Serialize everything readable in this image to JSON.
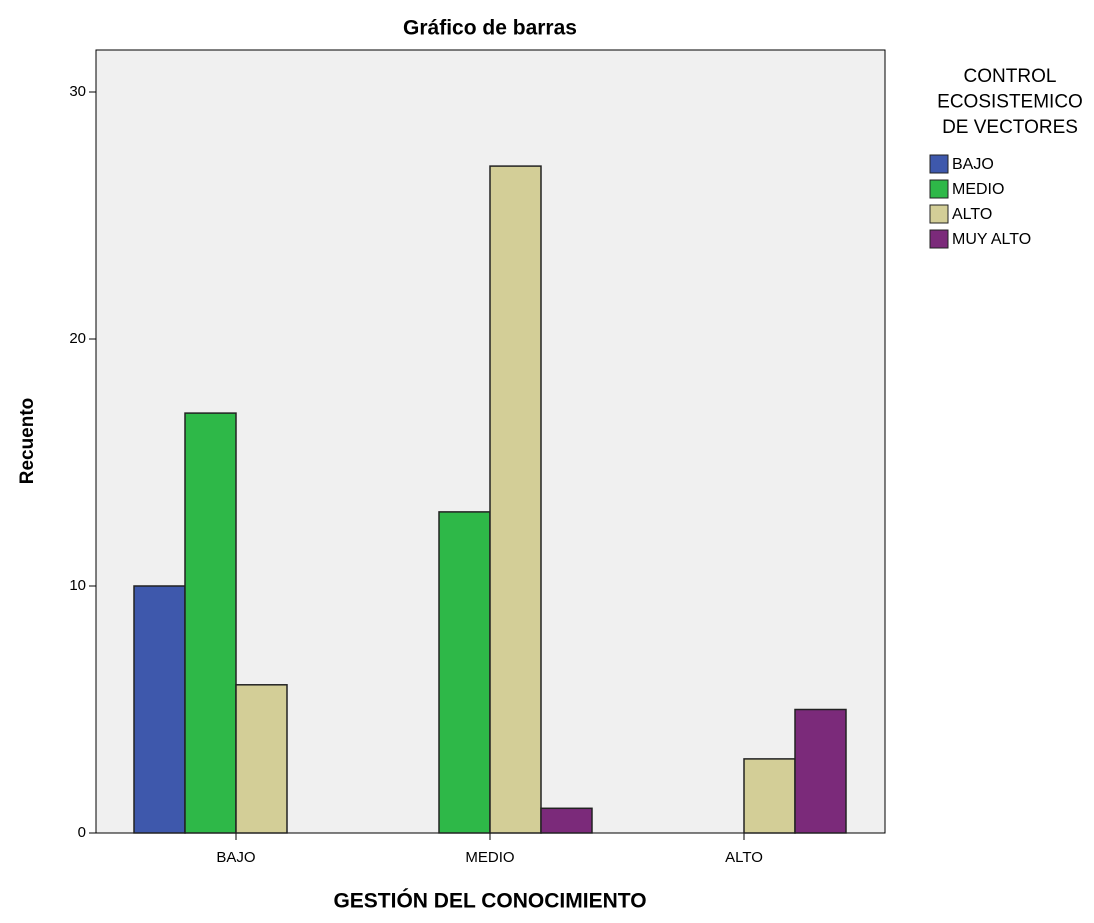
{
  "chart_data": {
    "type": "bar",
    "title": "Gráfico de barras",
    "x_label": "GESTIÓN DEL CONOCIMIENTO",
    "y_label": "Recuento",
    "categories": [
      "BAJO",
      "MEDIO",
      "ALTO"
    ],
    "legend_title": [
      "CONTROL",
      "ECOSISTEMICO",
      "DE VECTORES"
    ],
    "legend_position": "right",
    "series": [
      {
        "name": "BAJO",
        "color": "#3e58ac",
        "values": [
          10,
          0,
          0
        ]
      },
      {
        "name": "MEDIO",
        "color": "#2eb848",
        "values": [
          17,
          13,
          0
        ]
      },
      {
        "name": "ALTO",
        "color": "#d3ce97",
        "values": [
          6,
          27,
          3
        ]
      },
      {
        "name": "MUY ALTO",
        "color": "#7b2a7a",
        "values": [
          0,
          1,
          5
        ]
      }
    ],
    "ylim": [
      0,
      31.7
    ],
    "yticks": [
      0,
      10,
      20,
      30
    ]
  }
}
